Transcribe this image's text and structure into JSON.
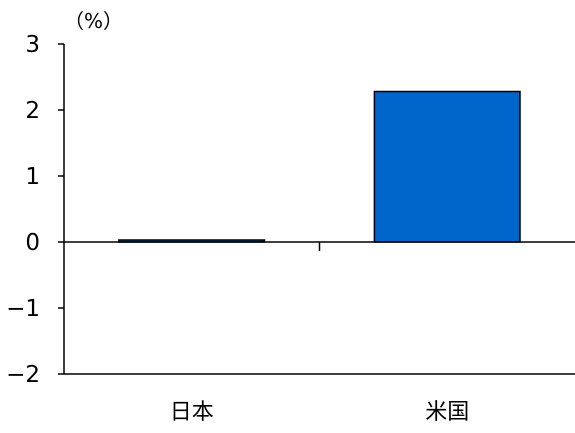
{
  "chart_data": {
    "type": "bar",
    "unit_label": "（%）",
    "categories": [
      "日本",
      "米国"
    ],
    "values": [
      0.03,
      2.28
    ],
    "ylim": [
      -2,
      3
    ],
    "yticks": [
      3,
      2,
      1,
      0,
      -1,
      -2
    ],
    "ytick_labels": [
      "3",
      "2",
      "1",
      "0",
      "−1",
      "−2"
    ],
    "grid": false,
    "legend": "none",
    "bar_colors": [
      "#0066cc",
      "#0066cc"
    ],
    "bar_stroke": "#000000"
  }
}
